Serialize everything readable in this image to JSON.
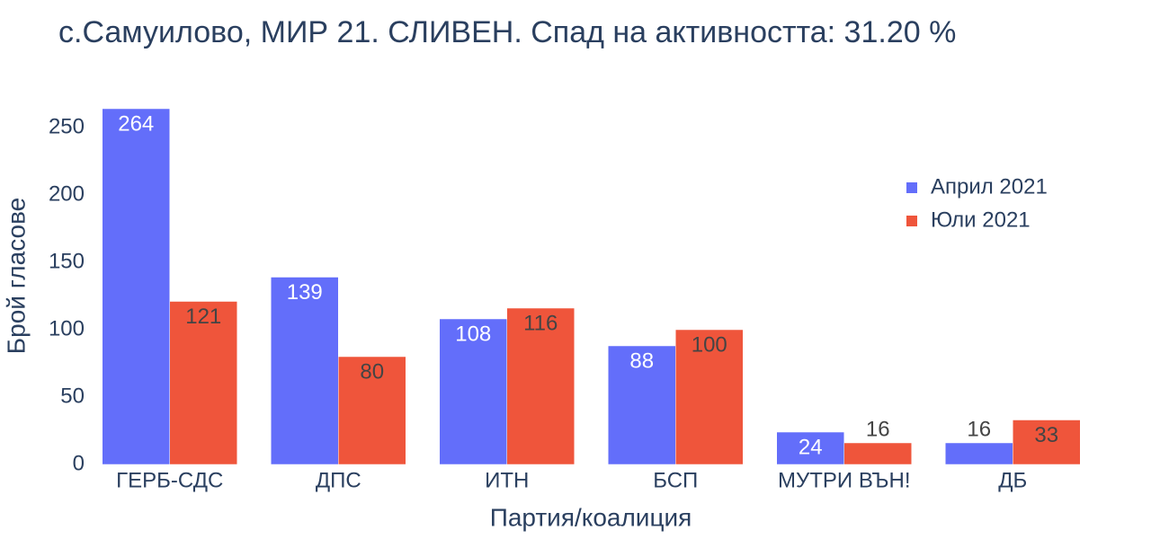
{
  "chart_data": {
    "type": "bar",
    "title": "с.Самуилово, МИР 21. СЛИВЕН. Спад на активността: 31.20 %",
    "x_label": "Партия/коалиция",
    "y_label": "Брой гласове",
    "categories": [
      "ГЕРБ-СДС",
      "ДПС",
      "ИТН",
      "БСП",
      "МУТРИ ВЪН!",
      "ДБ"
    ],
    "series": [
      {
        "name": "Април 2021",
        "color": "#636efa",
        "values": [
          264,
          139,
          108,
          88,
          24,
          16
        ]
      },
      {
        "name": "Юли 2021",
        "color": "#ef553b",
        "values": [
          121,
          80,
          116,
          100,
          16,
          33
        ]
      }
    ],
    "ylim": [
      0,
      280
    ],
    "yticks": [
      0,
      50,
      100,
      150,
      200,
      250
    ],
    "grid": false,
    "legend_position": "top-right"
  }
}
